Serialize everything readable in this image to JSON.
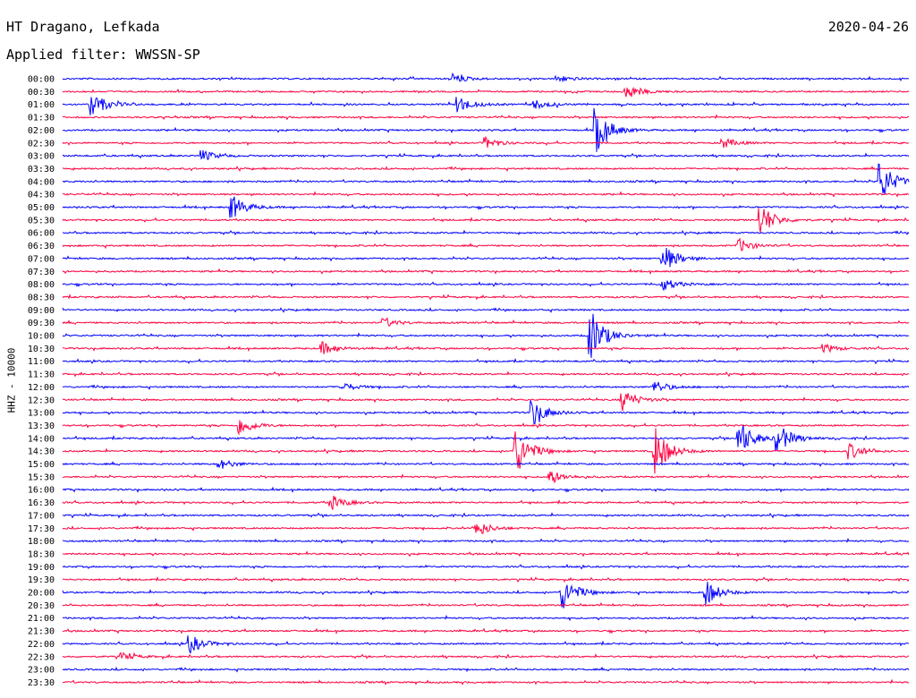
{
  "header": {
    "station": "HT Dragano, Lefkada",
    "date": "2020-04-26",
    "filter": "Applied filter: WWSSN-SP"
  },
  "axis_label": "HHZ - 10000",
  "colors": {
    "even_row": "#0000ff",
    "odd_row": "#ff0040",
    "background": "#ffffff"
  },
  "chart_data": {
    "type": "line",
    "title": "HT Dragano, Lefkada",
    "ylabel": "HHZ - 10000",
    "rows": [
      "00:00",
      "00:30",
      "01:00",
      "01:30",
      "02:00",
      "02:30",
      "03:00",
      "03:30",
      "04:00",
      "04:30",
      "05:00",
      "05:30",
      "06:00",
      "06:30",
      "07:00",
      "07:30",
      "08:00",
      "08:30",
      "09:00",
      "09:30",
      "10:00",
      "10:30",
      "11:00",
      "11:30",
      "12:00",
      "12:30",
      "13:00",
      "13:30",
      "14:00",
      "14:30",
      "15:00",
      "15:30",
      "16:00",
      "16:30",
      "17:00",
      "17:30",
      "18:00",
      "18:30",
      "19:00",
      "19:30",
      "20:00",
      "20:30",
      "21:00",
      "21:30",
      "22:00",
      "22:30",
      "23:00",
      "23:30"
    ],
    "x_range_minutes": [
      0,
      30
    ],
    "events": [
      {
        "row": "00:00",
        "t": 0.462,
        "amp": 5
      },
      {
        "row": "00:00",
        "t": 0.585,
        "amp": 4
      },
      {
        "row": "00:30",
        "t": 0.666,
        "amp": 9
      },
      {
        "row": "01:00",
        "t": 0.034,
        "amp": 14
      },
      {
        "row": "01:00",
        "t": 0.468,
        "amp": 9
      },
      {
        "row": "01:00",
        "t": 0.558,
        "amp": 5
      },
      {
        "row": "02:00",
        "t": 0.63,
        "amp": 26
      },
      {
        "row": "02:30",
        "t": 0.5,
        "amp": 6
      },
      {
        "row": "02:30",
        "t": 0.78,
        "amp": 6
      },
      {
        "row": "03:00",
        "t": 0.165,
        "amp": 6
      },
      {
        "row": "04:00",
        "t": 0.967,
        "amp": 22
      },
      {
        "row": "05:00",
        "t": 0.2,
        "amp": 14
      },
      {
        "row": "05:30",
        "t": 0.825,
        "amp": 18
      },
      {
        "row": "06:30",
        "t": 0.8,
        "amp": 7
      },
      {
        "row": "07:00",
        "t": 0.71,
        "amp": 16
      },
      {
        "row": "08:00",
        "t": 0.71,
        "amp": 7
      },
      {
        "row": "09:30",
        "t": 0.38,
        "amp": 5
      },
      {
        "row": "10:00",
        "t": 0.624,
        "amp": 30
      },
      {
        "row": "10:30",
        "t": 0.307,
        "amp": 7
      },
      {
        "row": "10:30",
        "t": 0.9,
        "amp": 5
      },
      {
        "row": "12:00",
        "t": 0.33,
        "amp": 5
      },
      {
        "row": "12:00",
        "t": 0.7,
        "amp": 7
      },
      {
        "row": "12:30",
        "t": 0.662,
        "amp": 12
      },
      {
        "row": "13:00",
        "t": 0.555,
        "amp": 16
      },
      {
        "row": "13:30",
        "t": 0.21,
        "amp": 10
      },
      {
        "row": "14:00",
        "t": 0.8,
        "amp": 20
      },
      {
        "row": "14:00",
        "t": 0.845,
        "amp": 16
      },
      {
        "row": "14:30",
        "t": 0.535,
        "amp": 28
      },
      {
        "row": "14:30",
        "t": 0.7,
        "amp": 28
      },
      {
        "row": "14:30",
        "t": 0.93,
        "amp": 9
      },
      {
        "row": "15:00",
        "t": 0.185,
        "amp": 6
      },
      {
        "row": "15:30",
        "t": 0.575,
        "amp": 8
      },
      {
        "row": "16:30",
        "t": 0.318,
        "amp": 8
      },
      {
        "row": "17:30",
        "t": 0.49,
        "amp": 9
      },
      {
        "row": "20:00",
        "t": 0.59,
        "amp": 20
      },
      {
        "row": "20:00",
        "t": 0.76,
        "amp": 15
      },
      {
        "row": "22:00",
        "t": 0.15,
        "amp": 11
      },
      {
        "row": "22:30",
        "t": 0.07,
        "amp": 4
      }
    ]
  }
}
